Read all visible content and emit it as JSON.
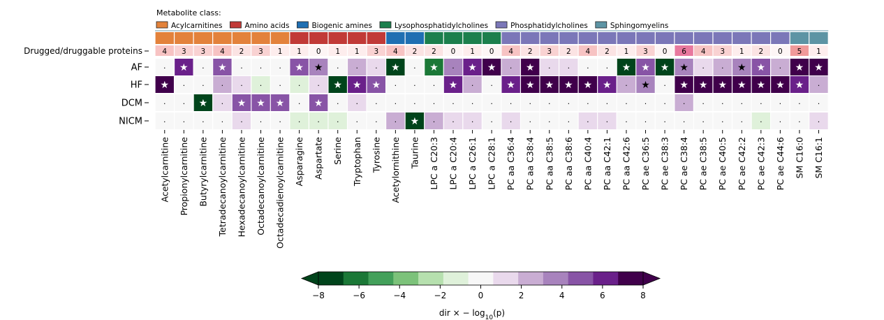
{
  "chart_data": {
    "type": "heatmap",
    "legend": {
      "title": "Metabolite class:",
      "entries": [
        {
          "name": "Acylcarnitines",
          "color": "#e3823b"
        },
        {
          "name": "Amino acids",
          "color": "#c13a37"
        },
        {
          "name": "Biogenic amines",
          "color": "#1f6fb2"
        },
        {
          "name": "Lysophosphatidylcholines",
          "color": "#1c7f4d"
        },
        {
          "name": "Phosphatidylcholines",
          "color": "#7b77b8"
        },
        {
          "name": "Sphingomyelins",
          "color": "#5d94a4"
        }
      ]
    },
    "columns": [
      {
        "name": "Acetylcarnitine",
        "class": 0
      },
      {
        "name": "Propionylcarnitine",
        "class": 0
      },
      {
        "name": "Butyrylcarnitine",
        "class": 0
      },
      {
        "name": "Tetradecanoylcarnitine",
        "class": 0
      },
      {
        "name": "Hexadecanoylcarnitine",
        "class": 0
      },
      {
        "name": "Octadecanoylcarnitine",
        "class": 0
      },
      {
        "name": "Octadecadienoylcarnitine",
        "class": 0
      },
      {
        "name": "Asparagine",
        "class": 1
      },
      {
        "name": "Aspartate",
        "class": 1
      },
      {
        "name": "Serine",
        "class": 1
      },
      {
        "name": "Tryptophan",
        "class": 1
      },
      {
        "name": "Tyrosine",
        "class": 1
      },
      {
        "name": "Acetylornithine",
        "class": 2
      },
      {
        "name": "Taurine",
        "class": 2
      },
      {
        "name": "LPC a C20:3",
        "class": 3
      },
      {
        "name": "LPC a C20:4",
        "class": 3
      },
      {
        "name": "LPC a C26:1",
        "class": 3
      },
      {
        "name": "LPC a C28:1",
        "class": 3
      },
      {
        "name": "PC aa C36:4",
        "class": 4
      },
      {
        "name": "PC aa C38:4",
        "class": 4
      },
      {
        "name": "PC aa C38:5",
        "class": 4
      },
      {
        "name": "PC aa C38:6",
        "class": 4
      },
      {
        "name": "PC aa C40:4",
        "class": 4
      },
      {
        "name": "PC aa C42:1",
        "class": 4
      },
      {
        "name": "PC aa C42:6",
        "class": 4
      },
      {
        "name": "PC ae C36:5",
        "class": 4
      },
      {
        "name": "PC ae C38:3",
        "class": 4
      },
      {
        "name": "PC ae C38:4",
        "class": 4
      },
      {
        "name": "PC ae C38:5",
        "class": 4
      },
      {
        "name": "PC ae C40:5",
        "class": 4
      },
      {
        "name": "PC ae C42:2",
        "class": 4
      },
      {
        "name": "PC ae C42:3",
        "class": 4
      },
      {
        "name": "PC ae C44:6",
        "class": 4
      },
      {
        "name": "SM C16:0",
        "class": 5
      },
      {
        "name": "SM C16:1",
        "class": 5
      }
    ],
    "drugged_label": "Drugged/druggable proteins",
    "drugged_counts": [
      4,
      3,
      3,
      4,
      2,
      3,
      1,
      1,
      0,
      1,
      1,
      3,
      4,
      2,
      2,
      0,
      1,
      0,
      4,
      2,
      3,
      2,
      4,
      2,
      1,
      3,
      0,
      6,
      4,
      3,
      1,
      2,
      0,
      5,
      1
    ],
    "rows": [
      "AF",
      "HF",
      "DCM",
      "NICM"
    ],
    "values": [
      [
        0.3,
        6,
        0.2,
        5.5,
        0.3,
        0.2,
        -0.4,
        4.5,
        3.5,
        0.2,
        2,
        1.5,
        -8,
        0.2,
        -6,
        3.5,
        6.5,
        7,
        2,
        7.5,
        1,
        1,
        0.3,
        0.2,
        -7,
        5,
        -8,
        4,
        1,
        3,
        4,
        5,
        2,
        7,
        7.5
      ],
      [
        7.5,
        0.3,
        0.2,
        2,
        1.5,
        -1,
        -0.5,
        -1,
        1.5,
        -8,
        6,
        5,
        -0.5,
        -0.5,
        0.3,
        6,
        3,
        0.3,
        6.5,
        8,
        7,
        7,
        7,
        6.5,
        2,
        4,
        0.2,
        8,
        7.5,
        8,
        8,
        8,
        7.5,
        6,
        2
      ],
      [
        0.2,
        0.2,
        -7,
        1.5,
        4.5,
        4.5,
        5,
        0.2,
        5,
        0.3,
        1.5,
        -0.5,
        0.2,
        0.2,
        0.3,
        0.3,
        0.3,
        0.5,
        0.5,
        0.5,
        0.5,
        0.5,
        0.5,
        0.5,
        0.3,
        0.5,
        0.3,
        2,
        0.3,
        0.5,
        0.5,
        0.5,
        0.5,
        0.3,
        0.5
      ],
      [
        0.2,
        -0.5,
        0.5,
        -0.5,
        0.8,
        0.2,
        0.2,
        -0.8,
        -0.8,
        -1.5,
        0.2,
        -0.5,
        3,
        -8,
        3,
        1.5,
        1,
        0.2,
        0.8,
        0.2,
        -0.5,
        0.3,
        1,
        0.8,
        0.2,
        0.5,
        0.3,
        0.5,
        0.3,
        0.3,
        0.5,
        -0.8,
        0.3,
        0.5,
        0.8
      ]
    ],
    "stars": [
      [
        0,
        1,
        0,
        1,
        0,
        0,
        0,
        1,
        1,
        0,
        0,
        0,
        1,
        0,
        1,
        0,
        1,
        1,
        0,
        1,
        0,
        0,
        0,
        0,
        1,
        1,
        1,
        1,
        0,
        0,
        1,
        1,
        0,
        1,
        1
      ],
      [
        1,
        0,
        0,
        0,
        0,
        0,
        0,
        0,
        0,
        1,
        1,
        1,
        0,
        0,
        0,
        1,
        0,
        0,
        1,
        1,
        1,
        1,
        1,
        1,
        0,
        1,
        0,
        1,
        1,
        1,
        1,
        1,
        1,
        1,
        0
      ],
      [
        0,
        0,
        1,
        0,
        1,
        1,
        1,
        0,
        1,
        0,
        0,
        0,
        0,
        0,
        0,
        0,
        0,
        0,
        0,
        0,
        0,
        0,
        0,
        0,
        0,
        0,
        0,
        0,
        0,
        0,
        0,
        0,
        0,
        0,
        0
      ],
      [
        0,
        0,
        0,
        0,
        0,
        0,
        0,
        0,
        0,
        0,
        0,
        0,
        0,
        1,
        0,
        0,
        0,
        0,
        0,
        0,
        0,
        0,
        0,
        0,
        0,
        0,
        0,
        0,
        0,
        0,
        0,
        0,
        0,
        0,
        0
      ]
    ],
    "colorbar": {
      "label": "dir × − log10(p)",
      "range": [
        -8,
        8
      ],
      "ticks": [
        -8,
        -6,
        -4,
        -2,
        0,
        2,
        4,
        6,
        8
      ],
      "colors": [
        "#00441b",
        "#1b7837",
        "#43a05a",
        "#7cc27a",
        "#b6e0ae",
        "#dff1da",
        "#f7f7f7",
        "#e9d9ec",
        "#c9add3",
        "#a883bd",
        "#8854a6",
        "#6a208a",
        "#40004b"
      ]
    },
    "count_colors": [
      "#fdf5f5",
      "#fdeded",
      "#fbe3e3",
      "#f9d2d2",
      "#f7c3c3",
      "#f09a9a",
      "#e8789e"
    ]
  }
}
